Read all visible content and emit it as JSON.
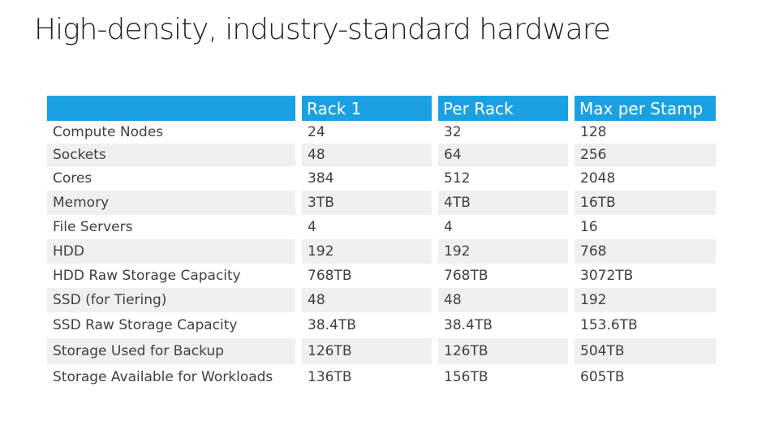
{
  "title": "High-density, industry-standard hardware",
  "table": {
    "columns": [
      "",
      "Rack 1",
      "Per Rack",
      "Max per Stamp"
    ],
    "rows": [
      {
        "label": "Compute Nodes",
        "rack1": "24",
        "per_rack": "32",
        "max_per_stamp": "128"
      },
      {
        "label": "Sockets",
        "rack1": "48",
        "per_rack": "64",
        "max_per_stamp": "256"
      },
      {
        "label": "Cores",
        "rack1": "384",
        "per_rack": "512",
        "max_per_stamp": "2048"
      },
      {
        "label": "Memory",
        "rack1": "3TB",
        "per_rack": "4TB",
        "max_per_stamp": "16TB"
      },
      {
        "label": "File Servers",
        "rack1": "4",
        "per_rack": "4",
        "max_per_stamp": "16"
      },
      {
        "label": "HDD",
        "rack1": "192",
        "per_rack": "192",
        "max_per_stamp": "768"
      },
      {
        "label": "HDD Raw Storage Capacity",
        "rack1": "768TB",
        "per_rack": "768TB",
        "max_per_stamp": "3072TB"
      },
      {
        "label": "SSD (for Tiering)",
        "rack1": "48",
        "per_rack": "48",
        "max_per_stamp": "192"
      },
      {
        "label": "SSD Raw Storage Capacity",
        "rack1": "38.4TB",
        "per_rack": "38.4TB",
        "max_per_stamp": "153.6TB"
      },
      {
        "label": "Storage Used for Backup",
        "rack1": "126TB",
        "per_rack": "126TB",
        "max_per_stamp": "504TB"
      },
      {
        "label": "Storage Available for Workloads",
        "rack1": "136TB",
        "per_rack": "156TB",
        "max_per_stamp": "605TB"
      }
    ]
  },
  "colors": {
    "header_bg": "#1ba1e2",
    "row_alt_bg": "#f0f0f0"
  }
}
